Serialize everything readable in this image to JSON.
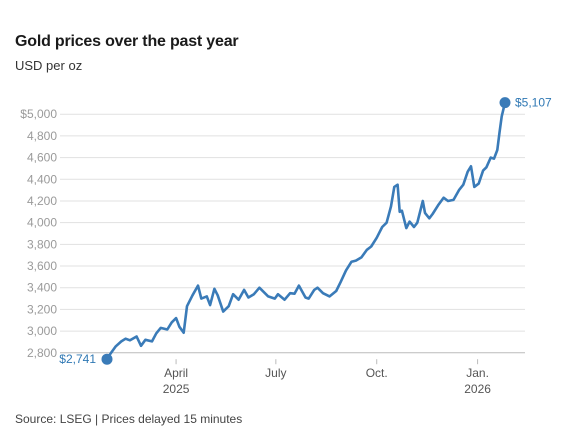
{
  "header": {
    "title": "Gold prices over the past year",
    "subtitle": "USD per oz"
  },
  "footer": {
    "source": "Source: LSEG | Prices delayed 15 minutes"
  },
  "colors": {
    "line": "#3a7bb8",
    "grid": "#e1e1e1",
    "axis": "#bbbbbb"
  },
  "chart_data": {
    "type": "line",
    "title": "Gold prices over the past year",
    "ylabel": "USD per oz",
    "xlabel": "",
    "ylim": [
      2741,
      5107
    ],
    "yticks": [
      {
        "value": 2800,
        "label": "2,800"
      },
      {
        "value": 3000,
        "label": "3,000"
      },
      {
        "value": 3200,
        "label": "3,200"
      },
      {
        "value": 3400,
        "label": "3,400"
      },
      {
        "value": 3600,
        "label": "3,600"
      },
      {
        "value": 3800,
        "label": "3,800"
      },
      {
        "value": 4000,
        "label": "4,000"
      },
      {
        "value": 4200,
        "label": "4,200"
      },
      {
        "value": 4400,
        "label": "4,400"
      },
      {
        "value": 4600,
        "label": "4,600"
      },
      {
        "value": 4800,
        "label": "4,800"
      },
      {
        "value": 5000,
        "label": "$5,000"
      }
    ],
    "xticks": [
      {
        "date": "2025-04-01",
        "label": "April",
        "sublabel": "2025"
      },
      {
        "date": "2025-07-01",
        "label": "July",
        "sublabel": ""
      },
      {
        "date": "2025-10-01",
        "label": "Oct.",
        "sublabel": ""
      },
      {
        "date": "2026-01-01",
        "label": "Jan.",
        "sublabel": "2026"
      }
    ],
    "annotations": {
      "start": {
        "date": "2025-01-28",
        "value": 2741,
        "label": "$2,741"
      },
      "end": {
        "date": "2026-01-26",
        "value": 5107,
        "label": "$5,107"
      }
    },
    "series": [
      {
        "points": [
          [
            "2025-01-28",
            2741
          ],
          [
            "2025-01-31",
            2790
          ],
          [
            "2025-02-05",
            2860
          ],
          [
            "2025-02-10",
            2905
          ],
          [
            "2025-02-14",
            2930
          ],
          [
            "2025-02-18",
            2915
          ],
          [
            "2025-02-24",
            2950
          ],
          [
            "2025-02-28",
            2865
          ],
          [
            "2025-03-04",
            2920
          ],
          [
            "2025-03-10",
            2905
          ],
          [
            "2025-03-14",
            2980
          ],
          [
            "2025-03-18",
            3030
          ],
          [
            "2025-03-24",
            3015
          ],
          [
            "2025-03-28",
            3080
          ],
          [
            "2025-04-01",
            3120
          ],
          [
            "2025-04-04",
            3040
          ],
          [
            "2025-04-08",
            2985
          ],
          [
            "2025-04-11",
            3230
          ],
          [
            "2025-04-16",
            3330
          ],
          [
            "2025-04-21",
            3420
          ],
          [
            "2025-04-24",
            3300
          ],
          [
            "2025-04-29",
            3320
          ],
          [
            "2025-05-02",
            3240
          ],
          [
            "2025-05-06",
            3390
          ],
          [
            "2025-05-09",
            3330
          ],
          [
            "2025-05-14",
            3180
          ],
          [
            "2025-05-19",
            3230
          ],
          [
            "2025-05-23",
            3340
          ],
          [
            "2025-05-28",
            3290
          ],
          [
            "2025-06-02",
            3380
          ],
          [
            "2025-06-06",
            3310
          ],
          [
            "2025-06-11",
            3340
          ],
          [
            "2025-06-16",
            3400
          ],
          [
            "2025-06-20",
            3360
          ],
          [
            "2025-06-24",
            3320
          ],
          [
            "2025-06-30",
            3300
          ],
          [
            "2025-07-03",
            3340
          ],
          [
            "2025-07-09",
            3290
          ],
          [
            "2025-07-14",
            3350
          ],
          [
            "2025-07-18",
            3345
          ],
          [
            "2025-07-22",
            3420
          ],
          [
            "2025-07-28",
            3310
          ],
          [
            "2025-07-31",
            3300
          ],
          [
            "2025-08-05",
            3380
          ],
          [
            "2025-08-08",
            3400
          ],
          [
            "2025-08-13",
            3350
          ],
          [
            "2025-08-19",
            3320
          ],
          [
            "2025-08-25",
            3370
          ],
          [
            "2025-08-29",
            3450
          ],
          [
            "2025-09-03",
            3560
          ],
          [
            "2025-09-08",
            3640
          ],
          [
            "2025-09-12",
            3650
          ],
          [
            "2025-09-17",
            3680
          ],
          [
            "2025-09-22",
            3750
          ],
          [
            "2025-09-26",
            3780
          ],
          [
            "2025-10-01",
            3860
          ],
          [
            "2025-10-06",
            3960
          ],
          [
            "2025-10-10",
            4000
          ],
          [
            "2025-10-14",
            4150
          ],
          [
            "2025-10-17",
            4330
          ],
          [
            "2025-10-20",
            4350
          ],
          [
            "2025-10-22",
            4100
          ],
          [
            "2025-10-24",
            4110
          ],
          [
            "2025-10-28",
            3950
          ],
          [
            "2025-10-31",
            4010
          ],
          [
            "2025-11-04",
            3960
          ],
          [
            "2025-11-07",
            4000
          ],
          [
            "2025-11-12",
            4200
          ],
          [
            "2025-11-14",
            4090
          ],
          [
            "2025-11-18",
            4040
          ],
          [
            "2025-11-21",
            4080
          ],
          [
            "2025-11-26",
            4160
          ],
          [
            "2025-12-01",
            4230
          ],
          [
            "2025-12-05",
            4200
          ],
          [
            "2025-12-10",
            4210
          ],
          [
            "2025-12-15",
            4300
          ],
          [
            "2025-12-19",
            4350
          ],
          [
            "2025-12-23",
            4470
          ],
          [
            "2025-12-26",
            4520
          ],
          [
            "2025-12-29",
            4330
          ],
          [
            "2026-01-02",
            4360
          ],
          [
            "2026-01-06",
            4480
          ],
          [
            "2026-01-09",
            4510
          ],
          [
            "2026-01-13",
            4600
          ],
          [
            "2026-01-16",
            4590
          ],
          [
            "2026-01-19",
            4670
          ],
          [
            "2026-01-21",
            4830
          ],
          [
            "2026-01-23",
            4980
          ],
          [
            "2026-01-26",
            5107
          ]
        ]
      }
    ],
    "grid": true,
    "legend": "none"
  }
}
